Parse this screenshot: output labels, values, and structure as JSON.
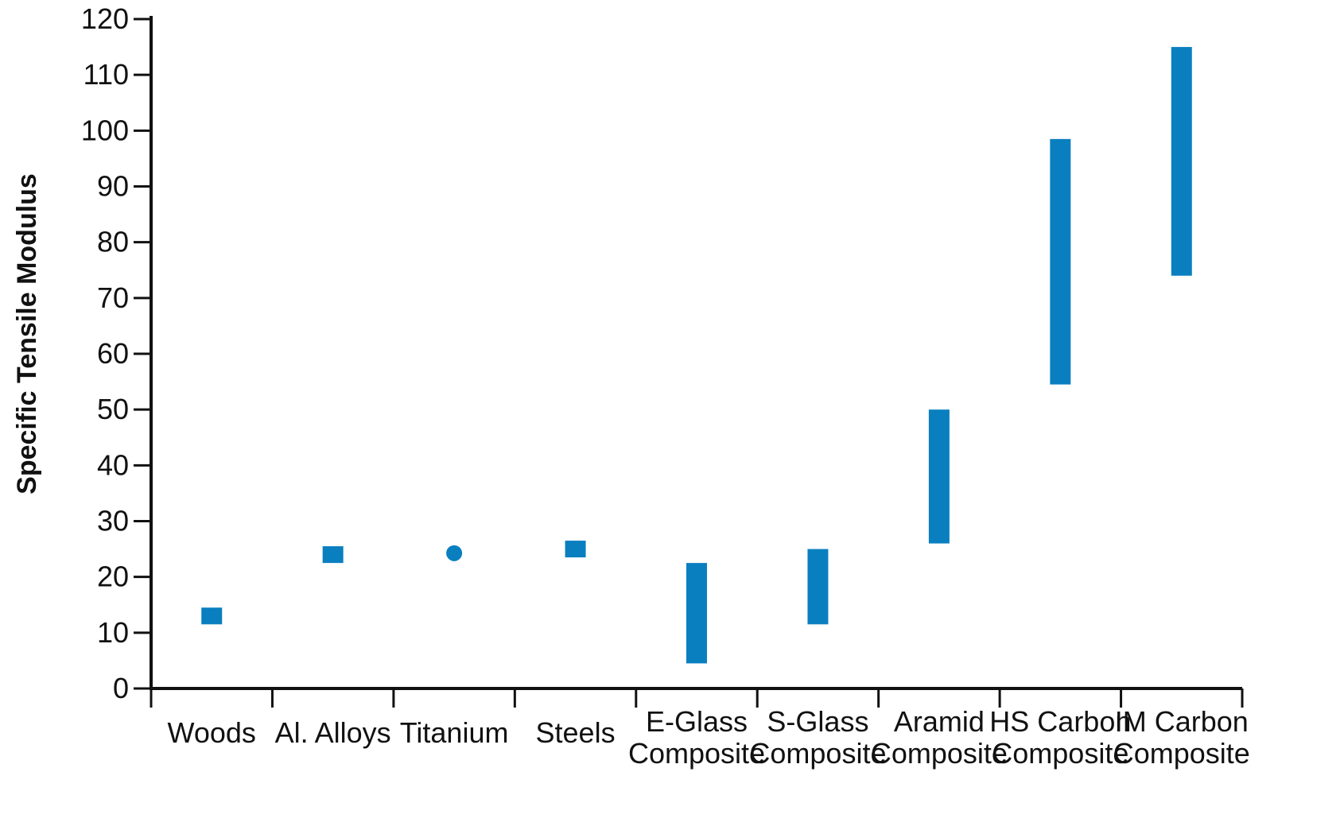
{
  "chart_data": {
    "type": "range",
    "ylabel": "Specific Tensile Modulus",
    "xlabel": "",
    "ylim": [
      0,
      120
    ],
    "yticks": [
      "0",
      "10",
      "20",
      "30",
      "40",
      "50",
      "60",
      "70",
      "80",
      "90",
      "100",
      "110",
      "120"
    ],
    "grid": false,
    "legend": "none",
    "color": "#0a7fc0",
    "categories": [
      {
        "label": [
          "Woods"
        ],
        "low": 11.5,
        "high": 14.5,
        "marker": "square"
      },
      {
        "label": [
          "Al. Alloys"
        ],
        "low": 22.5,
        "high": 25.5,
        "marker": "square"
      },
      {
        "label": [
          "Titanium"
        ],
        "low": 23.5,
        "high": 25.0,
        "marker": "dot"
      },
      {
        "label": [
          "Steels"
        ],
        "low": 23.5,
        "high": 26.5,
        "marker": "square"
      },
      {
        "label": [
          "E-Glass",
          "Composite"
        ],
        "low": 4.5,
        "high": 22.5,
        "marker": "bar"
      },
      {
        "label": [
          "S-Glass",
          "Composite"
        ],
        "low": 11.5,
        "high": 25.0,
        "marker": "bar"
      },
      {
        "label": [
          "Aramid",
          "Composite"
        ],
        "low": 26.0,
        "high": 50.0,
        "marker": "bar"
      },
      {
        "label": [
          "HS Carbon",
          "Composite"
        ],
        "low": 54.5,
        "high": 98.5,
        "marker": "bar"
      },
      {
        "label": [
          "IM Carbon",
          "Composite"
        ],
        "low": 74.0,
        "high": 115.0,
        "marker": "bar"
      }
    ]
  }
}
